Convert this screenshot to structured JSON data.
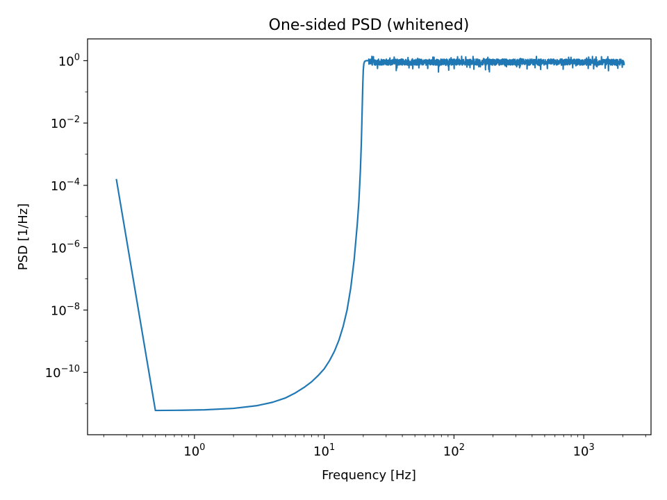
{
  "chart_data": {
    "type": "line",
    "title": "One-sided PSD (whitened)",
    "xlabel": "Frequency [Hz]",
    "ylabel": "PSD [1/Hz]",
    "xscale": "log",
    "yscale": "log",
    "xlim": [
      0.15,
      3300
    ],
    "ylim": [
      1e-12,
      5
    ],
    "grid": false,
    "line_color": "#1f77b4",
    "x_ticks": [
      {
        "value": 1,
        "base": "10",
        "exp": "0"
      },
      {
        "value": 10,
        "base": "10",
        "exp": "1"
      },
      {
        "value": 100,
        "base": "10",
        "exp": "2"
      },
      {
        "value": 1000,
        "base": "10",
        "exp": "3"
      }
    ],
    "y_ticks": [
      {
        "value": 1,
        "base": "10",
        "exp": "0"
      },
      {
        "value": 0.01,
        "base": "10",
        "exp": "−2"
      },
      {
        "value": 0.0001,
        "base": "10",
        "exp": "−4"
      },
      {
        "value": 1e-06,
        "base": "10",
        "exp": "−6"
      },
      {
        "value": 1e-08,
        "base": "10",
        "exp": "−8"
      },
      {
        "value": 1e-10,
        "base": "10",
        "exp": "−10"
      }
    ],
    "series": [
      {
        "x": [
          0.25,
          0.5,
          0.8,
          1.2,
          2.0,
          3.0,
          4.0,
          5.0,
          6.0,
          7.0,
          8.0,
          9.0,
          10.0,
          11.0,
          12.0,
          13.0,
          14.0,
          15.0,
          16.0,
          17.0,
          18.0,
          18.5,
          19.0,
          19.3,
          19.5,
          19.7,
          19.85,
          20.0,
          20.2,
          20.5,
          21.0,
          22.0
        ],
        "y": [
          0.00016,
          6e-12,
          6.1e-12,
          6.3e-12,
          7e-12,
          8.5e-12,
          1.1e-11,
          1.5e-11,
          2.2e-11,
          3.3e-11,
          5e-11,
          8e-11,
          1.3e-10,
          2.4e-10,
          4.8e-10,
          1.1e-09,
          3e-09,
          1e-08,
          5e-08,
          4e-07,
          6e-06,
          3e-05,
          0.0003,
          0.002,
          0.01,
          0.06,
          0.2,
          0.5,
          0.8,
          0.95,
          1.0,
          1.0
        ]
      }
    ],
    "noise_band": {
      "x_start": 22,
      "x_end": 2048,
      "center": 0.9,
      "note_ranges": [
        {
          "x": 22,
          "low": 0.72,
          "high": 1.2
        },
        {
          "x": 2048,
          "low": 0.55,
          "high": 1.25
        }
      ]
    }
  }
}
